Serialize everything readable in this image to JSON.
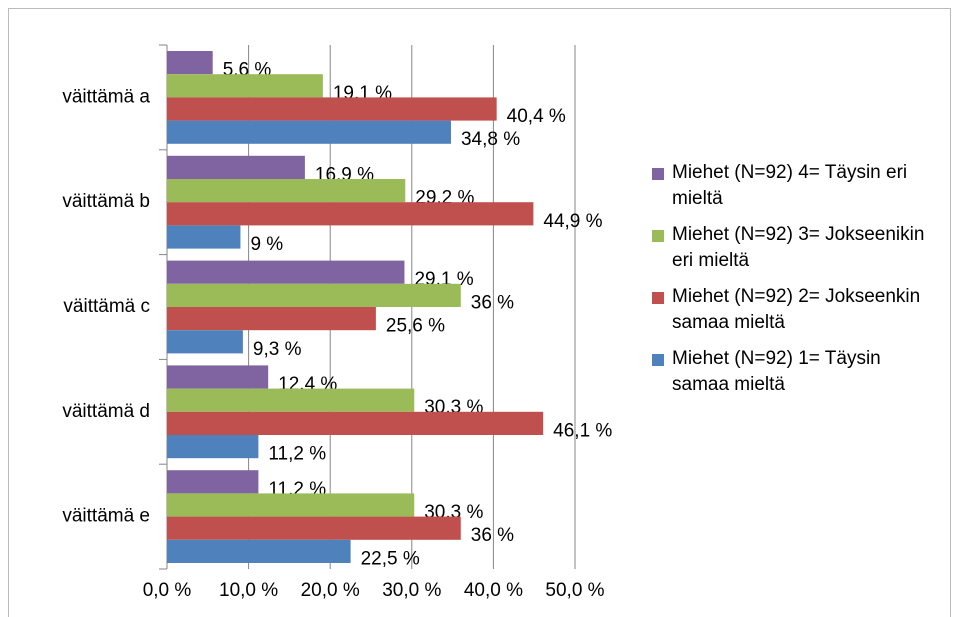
{
  "chart_data": {
    "type": "bar",
    "orientation": "horizontal",
    "categories": [
      "väittämä a",
      "väittämä b",
      "väittämä c",
      "väittämä d",
      "väittämä e"
    ],
    "series": [
      {
        "name": "Miehet (N=92) 4= Täysin eri mieltä",
        "color": "#8064a2",
        "values": [
          5.6,
          16.9,
          29.1,
          12.4,
          11.2
        ],
        "value_labels": [
          "5,6 %",
          "16,9 %",
          "29,1 %",
          "12,4 %",
          "11,2 %"
        ]
      },
      {
        "name": "Miehet (N=92) 3= Jokseenikin eri mieltä",
        "color": "#9bbb59",
        "values": [
          19.1,
          29.2,
          36,
          30.3,
          30.3
        ],
        "value_labels": [
          "19,1 %",
          "29,2 %",
          "36 %",
          "30,3 %",
          "30,3 %"
        ]
      },
      {
        "name": "Miehet (N=92) 2= Jokseenkin samaa mieltä",
        "color": "#c0504d",
        "values": [
          40.4,
          44.9,
          25.6,
          46.1,
          36
        ],
        "value_labels": [
          "40,4 %",
          "44,9 %",
          "25,6 %",
          "46,1 %",
          "36 %"
        ]
      },
      {
        "name": "Miehet (N=92) 1= Täysin samaa mieltä",
        "color": "#4f81bd",
        "values": [
          34.8,
          9,
          9.3,
          11.2,
          22.5
        ],
        "value_labels": [
          "34,8 %",
          "9 %",
          "9,3 %",
          "11,2 %",
          "22,5 %"
        ]
      }
    ],
    "xlim": [
      0,
      50
    ],
    "xticks": [
      {
        "value": 0,
        "label": "0,0 %"
      },
      {
        "value": 10,
        "label": "10,0 %"
      },
      {
        "value": 20,
        "label": "20,0 %"
      },
      {
        "value": 30,
        "label": "30,0 %"
      },
      {
        "value": 40,
        "label": "40,0 %"
      },
      {
        "value": 50,
        "label": "50,0 %"
      }
    ],
    "grid": true,
    "legend": "right"
  }
}
